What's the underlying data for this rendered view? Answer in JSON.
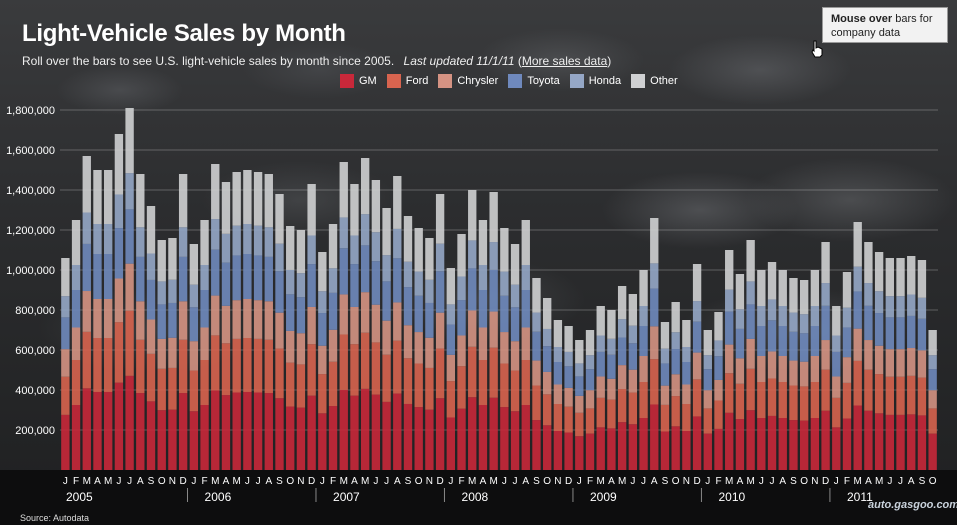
{
  "title": "Light-Vehicle Sales by Month",
  "subtitle": "Roll over the bars to see U.S. light-vehicle sales by month since 2005.",
  "last_updated": "Last updated 11/1/11",
  "link_open": "(",
  "link_text": "More sales data",
  "link_close": ")",
  "tooltip": {
    "bold": "Mouse over",
    "rest": "bars for company data"
  },
  "source": "Source: Autodata",
  "watermark": "auto.gasgoo.com",
  "colors": {
    "GM": "#c8283a",
    "Ford": "#d8644f",
    "Chrysler": "#d59383",
    "Toyota": "#6f89bd",
    "Honda": "#95a7c6",
    "Other": "#cfd0d2"
  },
  "chart_data": {
    "type": "bar",
    "stacked": true,
    "title": "Light-Vehicle Sales by Month",
    "xlabel": "",
    "ylabel": "",
    "ylim": [
      0,
      1900000
    ],
    "yticks": [
      200000,
      400000,
      600000,
      800000,
      1000000,
      1200000,
      1400000,
      1600000,
      1800000
    ],
    "ytick_labels": [
      "200,000",
      "400,000",
      "600,000",
      "800,000",
      "1,000,000",
      "1,200,000",
      "1,400,000",
      "1,600,000",
      "1,800,000"
    ],
    "month_letters": [
      "J",
      "F",
      "M",
      "A",
      "M",
      "J",
      "J",
      "A",
      "S",
      "O",
      "N",
      "D"
    ],
    "years": [
      "2005",
      "2006",
      "2007",
      "2008",
      "2009",
      "2010",
      "2011"
    ],
    "series_names": [
      "GM",
      "Ford",
      "Chrysler",
      "Toyota",
      "Honda",
      "Other"
    ],
    "totals": [
      1060000,
      1250000,
      1570000,
      1500000,
      1500000,
      1680000,
      1810000,
      1480000,
      1320000,
      1150000,
      1160000,
      1480000,
      1130000,
      1250000,
      1530000,
      1440000,
      1490000,
      1500000,
      1490000,
      1480000,
      1380000,
      1220000,
      1200000,
      1430000,
      1090000,
      1230000,
      1540000,
      1430000,
      1560000,
      1450000,
      1310000,
      1470000,
      1270000,
      1210000,
      1160000,
      1380000,
      1010000,
      1180000,
      1400000,
      1250000,
      1390000,
      1210000,
      1130000,
      1250000,
      960000,
      860000,
      750000,
      720000,
      650000,
      700000,
      820000,
      800000,
      920000,
      880000,
      1000000,
      1260000,
      740000,
      840000,
      750000,
      1030000,
      700000,
      790000,
      1100000,
      980000,
      1150000,
      1000000,
      1040000,
      1000000,
      960000,
      950000,
      1000000,
      1140000,
      820000,
      990000,
      1240000,
      1140000,
      1090000,
      1060000,
      1060000,
      1070000,
      1050000,
      700000
    ],
    "series": [
      {
        "name": "GM",
        "share": 0.26
      },
      {
        "name": "Ford",
        "share": 0.18
      },
      {
        "name": "Chrysler",
        "share": 0.13
      },
      {
        "name": "Toyota",
        "share": 0.15
      },
      {
        "name": "Honda",
        "share": 0.1
      },
      {
        "name": "Other",
        "share": 0.18
      }
    ]
  }
}
